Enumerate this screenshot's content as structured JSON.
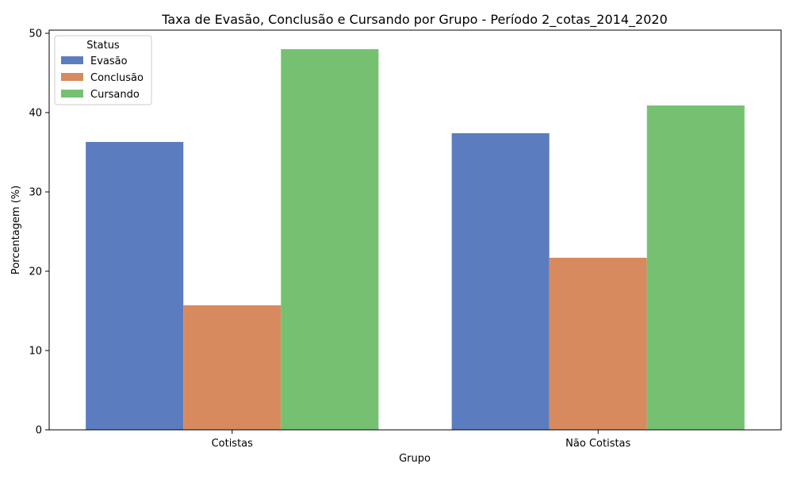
{
  "chart_data": {
    "type": "bar",
    "title": "Taxa de Evasão, Conclusão e Cursando por Grupo - Período 2_cotas_2014_2020",
    "xlabel": "Grupo",
    "ylabel": "Porcentagem (%)",
    "categories": [
      "Cotistas",
      "Não Cotistas"
    ],
    "series": [
      {
        "name": "Evasão",
        "color": "#5b7dbf",
        "values": [
          36.3,
          37.4
        ]
      },
      {
        "name": "Conclusão",
        "color": "#d88a5f",
        "values": [
          15.7,
          21.7
        ]
      },
      {
        "name": "Cursando",
        "color": "#76c171",
        "values": [
          48.0,
          40.9
        ]
      }
    ],
    "ylim": [
      0,
      50.4
    ],
    "yticks": [
      0,
      10,
      20,
      30,
      40,
      50
    ],
    "grid": false,
    "legend": {
      "title": "Status",
      "placement": "top-left"
    }
  }
}
